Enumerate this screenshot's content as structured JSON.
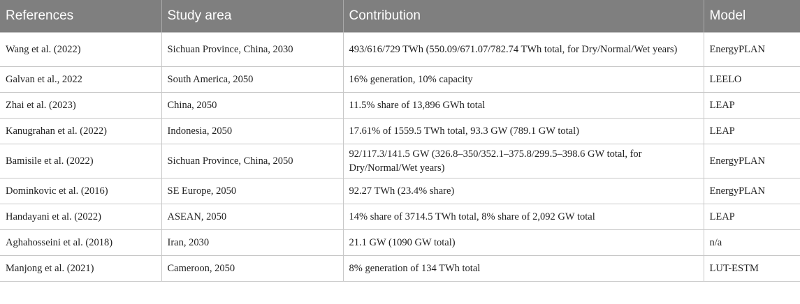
{
  "table": {
    "headers": [
      "References",
      "Study area",
      "Contribution",
      "Model"
    ],
    "rows": [
      {
        "reference": "Wang et al. (2022)",
        "study_area": "Sichuan Province, China, 2030",
        "contribution": "493/616/729 TWh (550.09/671.07/782.74 TWh total, for Dry/Normal/Wet years)",
        "model": "EnergyPLAN"
      },
      {
        "reference": "Galvan et al., 2022",
        "study_area": "South America, 2050",
        "contribution": "16% generation, 10% capacity",
        "model": "LEELO"
      },
      {
        "reference": "Zhai et al. (2023)",
        "study_area": "China, 2050",
        "contribution": "11.5% share of 13,896 GWh total",
        "model": "LEAP"
      },
      {
        "reference": "Kanugrahan et al. (2022)",
        "study_area": "Indonesia, 2050",
        "contribution": "17.61% of 1559.5 TWh total, 93.3 GW (789.1 GW total)",
        "model": "LEAP"
      },
      {
        "reference": "Bamisile et al. (2022)",
        "study_area": "Sichuan Province, China, 2050",
        "contribution": "92/117.3/141.5 GW (326.8–350/352.1–375.8/299.5–398.6 GW total, for Dry/Normal/Wet years)",
        "model": "EnergyPLAN"
      },
      {
        "reference": "Dominkovic et al. (2016)",
        "study_area": "SE Europe, 2050",
        "contribution": "92.27 TWh (23.4% share)",
        "model": "EnergyPLAN"
      },
      {
        "reference": "Handayani et al. (2022)",
        "study_area": "ASEAN, 2050",
        "contribution": "14% share of 3714.5 TWh total, 8% share of 2,092 GW total",
        "model": "LEAP"
      },
      {
        "reference": "Aghahosseini et al. (2018)",
        "study_area": "Iran, 2030",
        "contribution": "21.1 GW (1090 GW total)",
        "model": "n/a"
      },
      {
        "reference": "Manjong et al. (2021)",
        "study_area": "Cameroon, 2050",
        "contribution": "8% generation of 134 TWh total",
        "model": "LUT-ESTM"
      }
    ]
  }
}
